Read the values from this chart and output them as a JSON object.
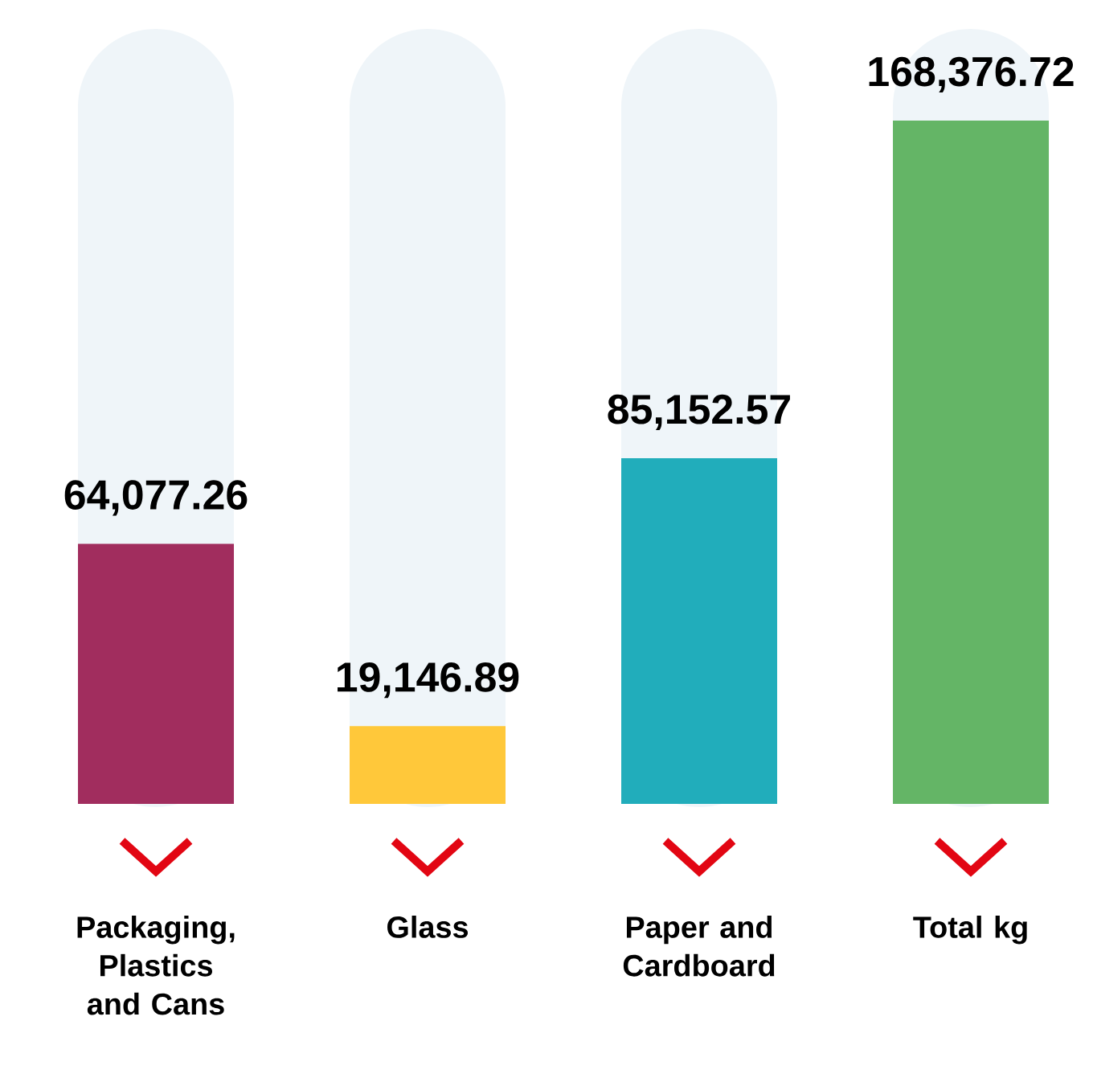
{
  "chart_data": {
    "type": "bar",
    "categories": [
      "Packaging, Plastics and Cans",
      "Glass",
      "Paper and Cardboard",
      "Total kg"
    ],
    "values": [
      64077.26,
      19146.89,
      85152.57,
      168376.72
    ],
    "colors": [
      "#a12d5e",
      "#ffc83a",
      "#21adbb",
      "#64b566"
    ],
    "value_labels": [
      "64,077.26",
      "19,146.89",
      "85,152.57",
      "168,376.72"
    ]
  }
}
